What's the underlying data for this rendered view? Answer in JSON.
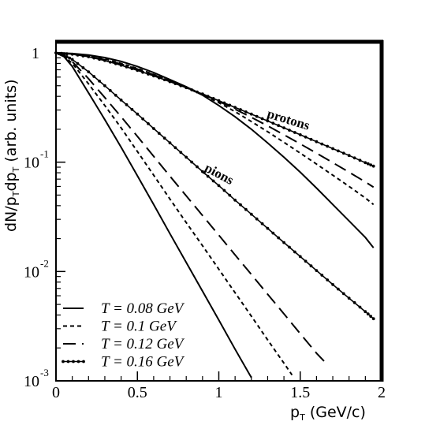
{
  "chart_data": {
    "type": "line",
    "x_axis": {
      "label_main": "p",
      "label_sub": "T",
      "label_rest": " (GeV/c)",
      "range": [
        0,
        2
      ],
      "ticks": [
        {
          "value": 0,
          "label": "0"
        },
        {
          "value": 0.5,
          "label": "0.5"
        },
        {
          "value": 1,
          "label": "1"
        },
        {
          "value": 1.5,
          "label": "1.5"
        },
        {
          "value": 2,
          "label": "2"
        }
      ]
    },
    "y_axis": {
      "scale": "log",
      "range": [
        0.001,
        1
      ],
      "label_parts": [
        "dN/p",
        "T",
        "dp",
        "T",
        " (arb. units)"
      ],
      "ticks": [
        {
          "value": 1,
          "base": "1",
          "exp": ""
        },
        {
          "value": 0.1,
          "base": "10",
          "exp": "-1"
        },
        {
          "value": 0.01,
          "base": "10",
          "exp": "-2"
        },
        {
          "value": 0.001,
          "base": "10",
          "exp": "-3"
        }
      ]
    },
    "legend_position": "bottom-left",
    "legend": [
      {
        "label": "T = 0.08 GeV",
        "style": "solid"
      },
      {
        "label": "T = 0.1 GeV",
        "style": "short-dash"
      },
      {
        "label": "T = 0.12 GeV",
        "style": "long-dash"
      },
      {
        "label": "T = 0.16 GeV",
        "style": "dotted-markers"
      }
    ],
    "annotations": [
      {
        "text": "protons",
        "x": 1.42,
        "y": 0.225,
        "rotation": 17
      },
      {
        "text": "pions",
        "x": 0.99,
        "y": 0.072,
        "rotation": 28
      }
    ],
    "series": [
      {
        "group": "pions",
        "style": "solid",
        "x": [
          0,
          0.05,
          0.1,
          0.2,
          0.3,
          0.4,
          0.5,
          0.6,
          0.7,
          0.8,
          0.9,
          1.0,
          1.1,
          1.2
        ],
        "y": [
          1,
          0.92,
          0.75,
          0.43,
          0.245,
          0.137,
          0.075,
          0.041,
          0.0222,
          0.0121,
          0.0066,
          0.0036,
          0.00195,
          0.00107
        ]
      },
      {
        "group": "pions",
        "style": "short-dash",
        "x": [
          0,
          0.05,
          0.1,
          0.2,
          0.3,
          0.4,
          0.5,
          0.6,
          0.7,
          0.8,
          0.9,
          1.0,
          1.1,
          1.2,
          1.3,
          1.4,
          1.45
        ],
        "y": [
          1,
          0.93,
          0.8,
          0.52,
          0.33,
          0.206,
          0.125,
          0.076,
          0.046,
          0.028,
          0.0172,
          0.0105,
          0.0064,
          0.0039,
          0.00237,
          0.00145,
          0.00113
        ]
      },
      {
        "group": "pions",
        "style": "long-dash",
        "x": [
          0,
          0.05,
          0.1,
          0.2,
          0.3,
          0.4,
          0.5,
          0.6,
          0.7,
          0.8,
          0.9,
          1.0,
          1.1,
          1.2,
          1.3,
          1.4,
          1.5,
          1.6,
          1.67
        ],
        "y": [
          1,
          0.94,
          0.83,
          0.58,
          0.39,
          0.26,
          0.172,
          0.113,
          0.0745,
          0.0492,
          0.0325,
          0.0215,
          0.0142,
          0.0094,
          0.0062,
          0.0041,
          0.0027,
          0.00179,
          0.00139
        ]
      },
      {
        "group": "pions",
        "style": "dotted-markers",
        "x": [
          0,
          0.05,
          0.1,
          0.2,
          0.3,
          0.4,
          0.5,
          0.6,
          0.7,
          0.8,
          0.9,
          1.0,
          1.1,
          1.2,
          1.3,
          1.4,
          1.5,
          1.6,
          1.7,
          1.8,
          1.9,
          1.95
        ],
        "y": [
          1,
          0.95,
          0.87,
          0.67,
          0.5,
          0.37,
          0.275,
          0.203,
          0.15,
          0.111,
          0.082,
          0.061,
          0.045,
          0.0334,
          0.0248,
          0.0184,
          0.0137,
          0.0102,
          0.0076,
          0.0057,
          0.0043,
          0.0037
        ]
      },
      {
        "group": "protons",
        "style": "solid",
        "x": [
          0,
          0.1,
          0.2,
          0.3,
          0.4,
          0.5,
          0.6,
          0.7,
          0.8,
          0.9,
          1.0,
          1.1,
          1.2,
          1.3,
          1.4,
          1.5,
          1.6,
          1.7,
          1.8,
          1.9,
          1.95
        ],
        "y": [
          1,
          0.985,
          0.955,
          0.905,
          0.835,
          0.75,
          0.66,
          0.57,
          0.49,
          0.41,
          0.33,
          0.26,
          0.2,
          0.15,
          0.111,
          0.081,
          0.058,
          0.041,
          0.029,
          0.0205,
          0.0165
        ]
      },
      {
        "group": "protons",
        "style": "short-dash",
        "x": [
          0,
          0.1,
          0.2,
          0.3,
          0.4,
          0.5,
          0.6,
          0.7,
          0.8,
          0.9,
          1.0,
          1.1,
          1.2,
          1.3,
          1.4,
          1.5,
          1.6,
          1.7,
          1.8,
          1.9,
          1.95
        ],
        "y": [
          1,
          0.98,
          0.94,
          0.88,
          0.8,
          0.72,
          0.635,
          0.555,
          0.48,
          0.412,
          0.35,
          0.29,
          0.235,
          0.19,
          0.152,
          0.121,
          0.096,
          0.076,
          0.06,
          0.047,
          0.041
        ]
      },
      {
        "group": "protons",
        "style": "long-dash",
        "x": [
          0,
          0.1,
          0.2,
          0.3,
          0.4,
          0.5,
          0.6,
          0.7,
          0.8,
          0.9,
          1.0,
          1.1,
          1.2,
          1.3,
          1.4,
          1.5,
          1.6,
          1.7,
          1.8,
          1.9,
          1.95
        ],
        "y": [
          1,
          0.975,
          0.93,
          0.865,
          0.79,
          0.71,
          0.63,
          0.555,
          0.485,
          0.42,
          0.36,
          0.305,
          0.257,
          0.215,
          0.178,
          0.147,
          0.121,
          0.099,
          0.081,
          0.066,
          0.059
        ]
      },
      {
        "group": "protons",
        "style": "dotted-markers",
        "x": [
          0,
          0.1,
          0.2,
          0.3,
          0.4,
          0.5,
          0.6,
          0.7,
          0.8,
          0.9,
          1.0,
          1.1,
          1.2,
          1.3,
          1.4,
          1.5,
          1.6,
          1.7,
          1.8,
          1.9,
          1.95
        ],
        "y": [
          1,
          0.97,
          0.92,
          0.85,
          0.77,
          0.69,
          0.615,
          0.545,
          0.48,
          0.42,
          0.365,
          0.317,
          0.275,
          0.238,
          0.206,
          0.178,
          0.154,
          0.133,
          0.115,
          0.099,
          0.092
        ]
      }
    ]
  }
}
